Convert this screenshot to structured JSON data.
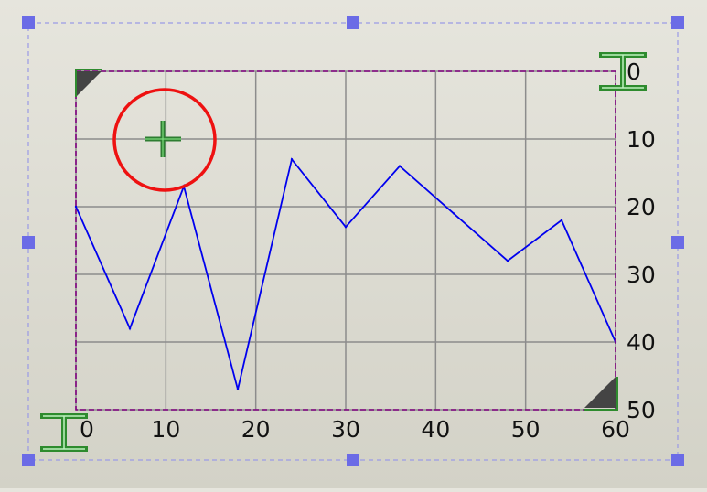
{
  "chart_data": {
    "type": "line",
    "xlim": [
      0,
      60
    ],
    "ylim": [
      0,
      50
    ],
    "y_inverted": true,
    "x_ticks": [
      "0",
      "10",
      "20",
      "30",
      "40",
      "50",
      "60"
    ],
    "y_ticks": [
      "0",
      "10",
      "20",
      "30",
      "40",
      "50"
    ],
    "grid": true,
    "series": [
      {
        "x": [
          0,
          6,
          12,
          18,
          24,
          30,
          36,
          42,
          48,
          54,
          60
        ],
        "y": [
          20,
          38,
          17,
          47,
          13,
          23,
          14,
          21,
          28,
          22,
          40
        ]
      }
    ]
  },
  "colors": {
    "line": "#0000ee",
    "grid": "#8c8c8c",
    "plot_border": "#800080",
    "selection_frame": "#9a9ae6",
    "selection_handle": "#6b6be6",
    "cursor_circle": "#ee1111",
    "cursor_cross": "#2e7d32",
    "ibeam": "#2e8b2e",
    "corner_marker": "#444444"
  },
  "icons": {
    "cursor": "crosshair-target-icon",
    "text_cursor": "i-beam-cursor-icon",
    "resize": "corner-resize-icon"
  }
}
